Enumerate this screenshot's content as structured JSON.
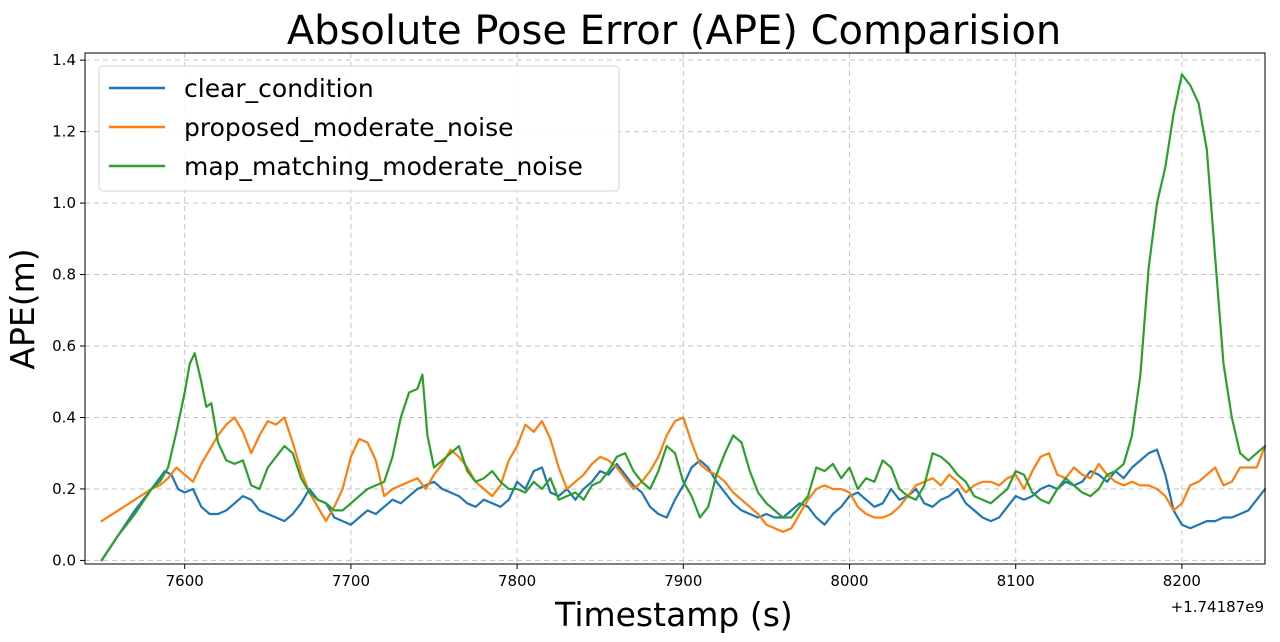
{
  "chart_data": {
    "type": "line",
    "title": "Absolute Pose Error (APE) Comparision",
    "xlabel": "Timestamp (s)",
    "ylabel": "APE(m)",
    "x_offset_label": "+1.74187e9",
    "xlim": [
      7540,
      8250
    ],
    "ylim": [
      -0.01,
      1.42
    ],
    "xticks": [
      7600,
      7700,
      7800,
      7900,
      8000,
      8100,
      8200
    ],
    "yticks": [
      0.0,
      0.2,
      0.4,
      0.6,
      0.8,
      1.0,
      1.2,
      1.4
    ],
    "ytick_labels": [
      "0.0",
      "0.2",
      "0.4",
      "0.6",
      "0.8",
      "1.0",
      "1.2",
      "1.4"
    ],
    "grid": true,
    "legend_position": "upper-left",
    "series": [
      {
        "name": "clear_condition",
        "color": "#1f77b4",
        "x": [
          7550,
          7560,
          7570,
          7580,
          7588,
          7592,
          7596,
          7600,
          7605,
          7610,
          7615,
          7620,
          7625,
          7630,
          7635,
          7640,
          7645,
          7650,
          7655,
          7660,
          7665,
          7670,
          7675,
          7680,
          7685,
          7690,
          7695,
          7700,
          7705,
          7710,
          7715,
          7720,
          7725,
          7730,
          7735,
          7740,
          7745,
          7750,
          7755,
          7760,
          7765,
          7770,
          7775,
          7780,
          7785,
          7790,
          7795,
          7800,
          7805,
          7810,
          7815,
          7820,
          7825,
          7830,
          7835,
          7840,
          7845,
          7850,
          7855,
          7860,
          7865,
          7870,
          7875,
          7880,
          7885,
          7890,
          7895,
          7900,
          7905,
          7910,
          7915,
          7920,
          7925,
          7930,
          7935,
          7940,
          7945,
          7950,
          7955,
          7960,
          7965,
          7970,
          7975,
          7980,
          7985,
          7990,
          7995,
          8000,
          8005,
          8010,
          8015,
          8020,
          8025,
          8030,
          8035,
          8040,
          8045,
          8050,
          8055,
          8060,
          8065,
          8070,
          8075,
          8080,
          8085,
          8090,
          8095,
          8100,
          8105,
          8110,
          8115,
          8120,
          8125,
          8130,
          8135,
          8140,
          8145,
          8150,
          8155,
          8160,
          8165,
          8170,
          8175,
          8180,
          8185,
          8190,
          8195,
          8200,
          8205,
          8210,
          8215,
          8220,
          8225,
          8230,
          8235,
          8240,
          8245,
          8250
        ],
        "y": [
          0.0,
          0.07,
          0.14,
          0.2,
          0.25,
          0.24,
          0.2,
          0.19,
          0.2,
          0.15,
          0.13,
          0.13,
          0.14,
          0.16,
          0.18,
          0.17,
          0.14,
          0.13,
          0.12,
          0.11,
          0.13,
          0.16,
          0.2,
          0.17,
          0.16,
          0.12,
          0.11,
          0.1,
          0.12,
          0.14,
          0.13,
          0.15,
          0.17,
          0.16,
          0.18,
          0.2,
          0.21,
          0.22,
          0.2,
          0.19,
          0.18,
          0.16,
          0.15,
          0.17,
          0.16,
          0.15,
          0.17,
          0.22,
          0.2,
          0.25,
          0.26,
          0.19,
          0.18,
          0.2,
          0.17,
          0.2,
          0.22,
          0.25,
          0.24,
          0.27,
          0.24,
          0.21,
          0.19,
          0.15,
          0.13,
          0.12,
          0.17,
          0.21,
          0.26,
          0.28,
          0.26,
          0.22,
          0.19,
          0.16,
          0.14,
          0.13,
          0.12,
          0.13,
          0.12,
          0.12,
          0.14,
          0.16,
          0.15,
          0.12,
          0.1,
          0.13,
          0.15,
          0.18,
          0.19,
          0.17,
          0.15,
          0.16,
          0.2,
          0.17,
          0.18,
          0.2,
          0.16,
          0.15,
          0.17,
          0.18,
          0.2,
          0.16,
          0.14,
          0.12,
          0.11,
          0.12,
          0.15,
          0.18,
          0.17,
          0.18,
          0.2,
          0.21,
          0.2,
          0.22,
          0.21,
          0.22,
          0.25,
          0.24,
          0.22,
          0.25,
          0.23,
          0.26,
          0.28,
          0.3,
          0.31,
          0.24,
          0.14,
          0.1,
          0.09,
          0.1,
          0.11,
          0.11,
          0.12,
          0.12,
          0.13,
          0.14,
          0.17,
          0.2
        ]
      },
      {
        "name": "proposed_moderate_noise",
        "color": "#ff7f0e",
        "x": [
          7550,
          7560,
          7570,
          7580,
          7585,
          7590,
          7595,
          7600,
          7605,
          7610,
          7615,
          7620,
          7625,
          7630,
          7635,
          7640,
          7645,
          7650,
          7655,
          7660,
          7665,
          7670,
          7675,
          7680,
          7685,
          7690,
          7695,
          7700,
          7705,
          7710,
          7715,
          7720,
          7725,
          7730,
          7735,
          7740,
          7745,
          7750,
          7755,
          7760,
          7765,
          7770,
          7775,
          7780,
          7785,
          7790,
          7795,
          7800,
          7805,
          7810,
          7815,
          7820,
          7825,
          7830,
          7835,
          7840,
          7845,
          7850,
          7855,
          7860,
          7865,
          7870,
          7875,
          7880,
          7885,
          7890,
          7895,
          7900,
          7905,
          7910,
          7915,
          7920,
          7925,
          7930,
          7935,
          7940,
          7945,
          7950,
          7955,
          7960,
          7965,
          7970,
          7975,
          7980,
          7985,
          7990,
          7995,
          8000,
          8005,
          8010,
          8015,
          8020,
          8025,
          8030,
          8035,
          8040,
          8045,
          8050,
          8055,
          8060,
          8065,
          8070,
          8075,
          8080,
          8085,
          8090,
          8095,
          8100,
          8105,
          8110,
          8115,
          8120,
          8125,
          8130,
          8135,
          8140,
          8145,
          8150,
          8155,
          8160,
          8165,
          8170,
          8175,
          8180,
          8185,
          8190,
          8195,
          8200,
          8205,
          8210,
          8215,
          8220,
          8225,
          8230,
          8235,
          8240,
          8245,
          8250
        ],
        "y": [
          0.11,
          0.14,
          0.17,
          0.2,
          0.21,
          0.23,
          0.26,
          0.24,
          0.22,
          0.27,
          0.31,
          0.35,
          0.38,
          0.4,
          0.36,
          0.3,
          0.35,
          0.39,
          0.38,
          0.4,
          0.33,
          0.25,
          0.19,
          0.15,
          0.11,
          0.15,
          0.2,
          0.29,
          0.34,
          0.33,
          0.28,
          0.18,
          0.2,
          0.21,
          0.22,
          0.23,
          0.2,
          0.24,
          0.27,
          0.31,
          0.29,
          0.26,
          0.22,
          0.2,
          0.18,
          0.21,
          0.28,
          0.32,
          0.38,
          0.36,
          0.39,
          0.34,
          0.26,
          0.2,
          0.22,
          0.24,
          0.27,
          0.29,
          0.28,
          0.26,
          0.23,
          0.2,
          0.22,
          0.25,
          0.29,
          0.35,
          0.39,
          0.4,
          0.33,
          0.27,
          0.25,
          0.24,
          0.22,
          0.19,
          0.17,
          0.15,
          0.13,
          0.1,
          0.09,
          0.08,
          0.09,
          0.13,
          0.17,
          0.2,
          0.21,
          0.2,
          0.2,
          0.19,
          0.15,
          0.13,
          0.12,
          0.12,
          0.13,
          0.15,
          0.18,
          0.21,
          0.22,
          0.23,
          0.21,
          0.24,
          0.22,
          0.19,
          0.21,
          0.22,
          0.22,
          0.21,
          0.23,
          0.24,
          0.2,
          0.25,
          0.29,
          0.3,
          0.24,
          0.23,
          0.26,
          0.24,
          0.23,
          0.27,
          0.24,
          0.22,
          0.21,
          0.22,
          0.21,
          0.21,
          0.2,
          0.18,
          0.14,
          0.16,
          0.21,
          0.22,
          0.24,
          0.26,
          0.21,
          0.22,
          0.26,
          0.26,
          0.26,
          0.32
        ]
      },
      {
        "name": "map_matching_moderate_noise",
        "color": "#2ca02c",
        "x": [
          7550,
          7560,
          7570,
          7580,
          7585,
          7590,
          7595,
          7600,
          7603,
          7606,
          7610,
          7613,
          7616,
          7620,
          7625,
          7630,
          7635,
          7640,
          7645,
          7650,
          7655,
          7660,
          7665,
          7670,
          7675,
          7680,
          7685,
          7690,
          7695,
          7700,
          7705,
          7710,
          7715,
          7720,
          7725,
          7730,
          7735,
          7740,
          7743,
          7746,
          7750,
          7755,
          7760,
          7765,
          7770,
          7775,
          7780,
          7785,
          7790,
          7795,
          7800,
          7805,
          7810,
          7815,
          7820,
          7825,
          7830,
          7835,
          7840,
          7845,
          7850,
          7855,
          7860,
          7865,
          7870,
          7875,
          7880,
          7885,
          7890,
          7895,
          7900,
          7905,
          7910,
          7915,
          7920,
          7925,
          7930,
          7935,
          7940,
          7945,
          7950,
          7955,
          7960,
          7965,
          7970,
          7975,
          7980,
          7985,
          7990,
          7995,
          8000,
          8005,
          8010,
          8015,
          8020,
          8025,
          8030,
          8035,
          8040,
          8045,
          8050,
          8055,
          8060,
          8065,
          8070,
          8075,
          8080,
          8085,
          8090,
          8095,
          8100,
          8105,
          8110,
          8115,
          8120,
          8125,
          8130,
          8135,
          8140,
          8145,
          8150,
          8155,
          8160,
          8165,
          8170,
          8175,
          8180,
          8185,
          8190,
          8195,
          8200,
          8205,
          8210,
          8215,
          8220,
          8225,
          8230,
          8235,
          8240,
          8245,
          8250
        ],
        "y": [
          0.0,
          0.07,
          0.13,
          0.2,
          0.22,
          0.26,
          0.36,
          0.47,
          0.55,
          0.58,
          0.5,
          0.43,
          0.44,
          0.33,
          0.28,
          0.27,
          0.28,
          0.21,
          0.2,
          0.26,
          0.29,
          0.32,
          0.3,
          0.23,
          0.19,
          0.17,
          0.16,
          0.14,
          0.14,
          0.16,
          0.18,
          0.2,
          0.21,
          0.22,
          0.29,
          0.4,
          0.47,
          0.48,
          0.52,
          0.35,
          0.26,
          0.28,
          0.3,
          0.32,
          0.25,
          0.22,
          0.23,
          0.25,
          0.22,
          0.2,
          0.2,
          0.19,
          0.22,
          0.2,
          0.23,
          0.17,
          0.18,
          0.19,
          0.17,
          0.21,
          0.22,
          0.25,
          0.29,
          0.3,
          0.25,
          0.22,
          0.2,
          0.25,
          0.32,
          0.3,
          0.22,
          0.18,
          0.12,
          0.15,
          0.24,
          0.3,
          0.35,
          0.33,
          0.25,
          0.19,
          0.16,
          0.14,
          0.12,
          0.12,
          0.15,
          0.18,
          0.26,
          0.25,
          0.27,
          0.23,
          0.26,
          0.2,
          0.23,
          0.22,
          0.28,
          0.26,
          0.2,
          0.18,
          0.17,
          0.21,
          0.3,
          0.29,
          0.27,
          0.24,
          0.22,
          0.18,
          0.17,
          0.16,
          0.18,
          0.2,
          0.25,
          0.24,
          0.19,
          0.17,
          0.16,
          0.2,
          0.23,
          0.21,
          0.19,
          0.18,
          0.2,
          0.24,
          0.25,
          0.27,
          0.35,
          0.52,
          0.82,
          1.0,
          1.1,
          1.25,
          1.36,
          1.33,
          1.28,
          1.15,
          0.85,
          0.55,
          0.4,
          0.3,
          0.28,
          0.3,
          0.32
        ]
      }
    ]
  }
}
